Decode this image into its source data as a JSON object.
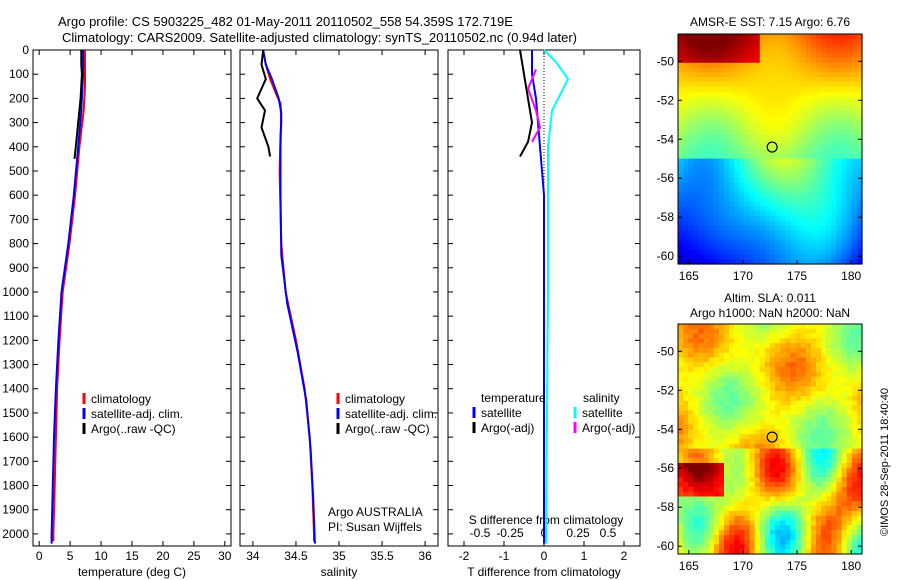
{
  "header": {
    "line1": "Argo profile: CS 5903225_482 01-May-2011 20110502_558 54.359S 172.719E",
    "line2": "Climatology: CARS2009. Satellite-adjusted climatology: synTS_20110502.nc (0.94d later)"
  },
  "side_stamp": "©IMOS 28-Sep-2011 18:40:40",
  "colors": {
    "climatology": "#ff0000",
    "satellite": "#0000ff",
    "argo": "#000000",
    "salinity_satellite": "#00ffff",
    "salinity_argo": "#ff00ff"
  },
  "chart_data": [
    {
      "type": "line",
      "id": "temperature",
      "xlabel": "temperature (deg C)",
      "ylabel": "",
      "xlim": [
        -1,
        31
      ],
      "ylim": [
        2050,
        0
      ],
      "xticks": [
        0,
        5,
        10,
        15,
        20,
        25,
        30
      ],
      "yticks": [
        0,
        100,
        200,
        300,
        400,
        500,
        600,
        700,
        800,
        900,
        1000,
        1100,
        1200,
        1300,
        1400,
        1500,
        1600,
        1700,
        1800,
        1900,
        2000
      ],
      "legend": [
        "climatology",
        "satellite-adj. clim.",
        "Argo(..raw -QC)"
      ],
      "series": [
        {
          "name": "climatology",
          "color": "#ff0000",
          "points": [
            [
              7.4,
              0
            ],
            [
              7.4,
              100
            ],
            [
              7.4,
              150
            ],
            [
              7.2,
              250
            ],
            [
              6.5,
              400
            ],
            [
              5.8,
              600
            ],
            [
              4.9,
              800
            ],
            [
              3.8,
              1000
            ],
            [
              3.3,
              1200
            ],
            [
              2.9,
              1400
            ],
            [
              2.7,
              1600
            ],
            [
              2.5,
              1800
            ],
            [
              2.3,
              2000
            ],
            [
              2.3,
              2030
            ]
          ]
        },
        {
          "name": "satellite-adj. clim.",
          "color": "#0000ff",
          "points": [
            [
              7.1,
              0
            ],
            [
              7.1,
              100
            ],
            [
              7.0,
              150
            ],
            [
              6.8,
              250
            ],
            [
              6.3,
              400
            ],
            [
              5.6,
              600
            ],
            [
              4.7,
              800
            ],
            [
              3.6,
              1000
            ],
            [
              3.1,
              1200
            ],
            [
              2.7,
              1400
            ],
            [
              2.4,
              1600
            ],
            [
              2.2,
              1800
            ],
            [
              2.0,
              2000
            ],
            [
              2.0,
              2040
            ]
          ]
        },
        {
          "name": "Argo(..raw -QC)",
          "color": "#000000",
          "points": [
            [
              6.8,
              0
            ],
            [
              6.8,
              60
            ],
            [
              6.9,
              100
            ],
            [
              6.7,
              200
            ],
            [
              6.3,
              300
            ],
            [
              6.0,
              380
            ],
            [
              5.7,
              450
            ]
          ]
        }
      ]
    },
    {
      "type": "line",
      "id": "salinity",
      "xlabel": "salinity",
      "ylabel": "",
      "xlim": [
        33.85,
        36.15
      ],
      "ylim": [
        2050,
        0
      ],
      "xticks": [
        34,
        34.5,
        35,
        35.5,
        36
      ],
      "legend": [
        "climatology",
        "satellite-adj. clim.",
        "Argo(..raw -QC)"
      ],
      "annotation": [
        "Argo AUSTRALIA",
        "PI: Susan Wijffels"
      ],
      "series": [
        {
          "name": "climatology",
          "color": "#ff0000",
          "points": [
            [
              34.12,
              0
            ],
            [
              34.15,
              60
            ],
            [
              34.2,
              120
            ],
            [
              34.28,
              190
            ],
            [
              34.32,
              220
            ],
            [
              34.33,
              300
            ],
            [
              34.32,
              350
            ],
            [
              34.31,
              500
            ],
            [
              34.33,
              800
            ],
            [
              34.38,
              1000
            ],
            [
              34.5,
              1200
            ],
            [
              34.6,
              1400
            ],
            [
              34.66,
              1600
            ],
            [
              34.69,
              1800
            ],
            [
              34.71,
              2000
            ],
            [
              34.71,
              2030
            ]
          ]
        },
        {
          "name": "satellite-adj. clim.",
          "color": "#0000ff",
          "points": [
            [
              34.12,
              0
            ],
            [
              34.15,
              60
            ],
            [
              34.22,
              120
            ],
            [
              34.3,
              200
            ],
            [
              34.33,
              260
            ],
            [
              34.32,
              400
            ],
            [
              34.32,
              600
            ],
            [
              34.33,
              850
            ],
            [
              34.4,
              1050
            ],
            [
              34.52,
              1250
            ],
            [
              34.62,
              1450
            ],
            [
              34.67,
              1650
            ],
            [
              34.7,
              1850
            ],
            [
              34.72,
              2040
            ]
          ]
        },
        {
          "name": "Argo(..raw -QC)",
          "color": "#000000",
          "points": [
            [
              34.12,
              0
            ],
            [
              34.1,
              60
            ],
            [
              34.15,
              120
            ],
            [
              34.05,
              200
            ],
            [
              34.14,
              250
            ],
            [
              34.1,
              320
            ],
            [
              34.18,
              400
            ],
            [
              34.2,
              440
            ]
          ]
        }
      ]
    },
    {
      "type": "line",
      "id": "difference",
      "xlabel": "T difference from climatology",
      "x2label": "S difference from climatology",
      "xlim": [
        -2.4,
        2.4
      ],
      "ylim": [
        2050,
        0
      ],
      "xticks": [
        -2,
        -1,
        0,
        1,
        2
      ],
      "x2ticks": [
        "-0.5",
        "-0.25",
        "0",
        "0.25",
        "0.5"
      ],
      "legend_left_title": "temperature",
      "legend_right_title": "salinity",
      "legend": [
        "satellite",
        "Argo(-adj)",
        "satellite",
        "Argo(-adj)"
      ],
      "series": [
        {
          "name": "temperature satellite",
          "color": "#0000ff",
          "points": [
            [
              -0.3,
              0
            ],
            [
              -0.3,
              100
            ],
            [
              -0.2,
              200
            ],
            [
              -0.1,
              400
            ],
            [
              0,
              600
            ],
            [
              0,
              1000
            ],
            [
              0,
              2040
            ]
          ]
        },
        {
          "name": "temperature Argo(-adj)",
          "color": "#000000",
          "points": [
            [
              -0.6,
              0
            ],
            [
              -0.5,
              100
            ],
            [
              -0.4,
              200
            ],
            [
              -0.3,
              300
            ],
            [
              -0.4,
              380
            ],
            [
              -0.6,
              440
            ]
          ]
        },
        {
          "name": "salinity satellite",
          "color": "#00ffff",
          "points": [
            [
              0,
              0
            ],
            [
              0.3,
              50
            ],
            [
              0.6,
              120
            ],
            [
              0.2,
              250
            ],
            [
              0.1,
              400
            ],
            [
              0.1,
              1000
            ],
            [
              0.05,
              2040
            ]
          ]
        },
        {
          "name": "salinity Argo(-adj)",
          "color": "#ff00ff",
          "points": [
            [
              -0.2,
              80
            ],
            [
              -0.4,
              160
            ],
            [
              -0.2,
              250
            ],
            [
              -0.1,
              320
            ],
            [
              -0.3,
              380
            ]
          ]
        }
      ]
    },
    {
      "type": "heatmap",
      "id": "sst_map",
      "title": "AMSR-E SST: 7.15 Argo: 6.76",
      "xlim": [
        164,
        181
      ],
      "ylim": [
        -60.4,
        -48.6
      ],
      "xticks": [
        165,
        170,
        175,
        180
      ],
      "yticks": [
        -50,
        -52,
        -54,
        -56,
        -58,
        -60
      ],
      "marker": {
        "lon": 172.7,
        "lat": -54.4
      }
    },
    {
      "type": "heatmap",
      "id": "sla_map",
      "title": "Altim. SLA: 0.011",
      "subtitle": "Argo h1000: NaN h2000: NaN",
      "xlim": [
        164,
        181
      ],
      "ylim": [
        -60.4,
        -48.6
      ],
      "xticks": [
        165,
        170,
        175,
        180
      ],
      "yticks": [
        -50,
        -52,
        -54,
        -56,
        -58,
        -60
      ],
      "marker": {
        "lon": 172.7,
        "lat": -54.4
      }
    }
  ]
}
